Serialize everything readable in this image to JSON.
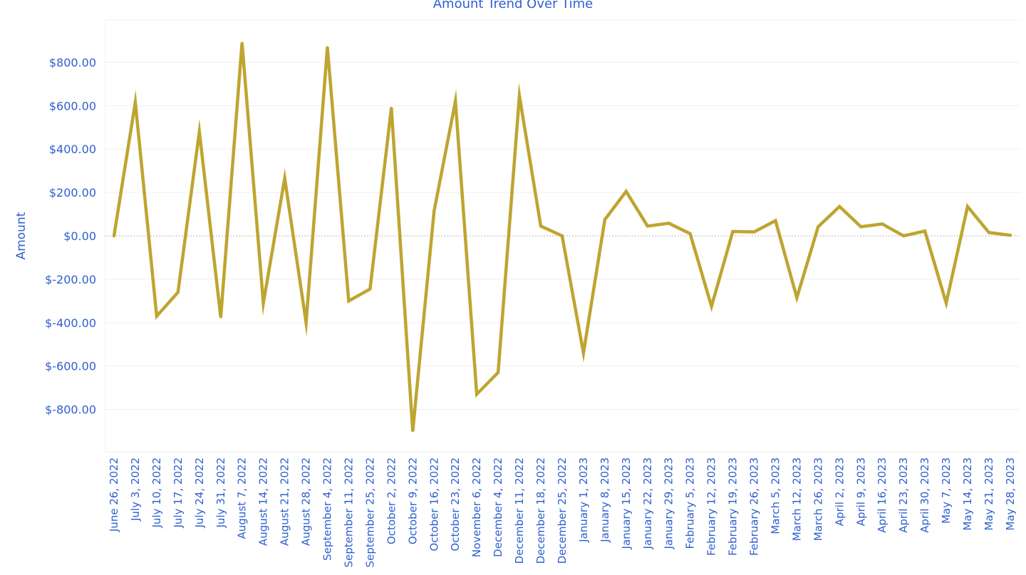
{
  "chart_data": {
    "type": "line",
    "title": "Amount Trend Over Time",
    "ylabel": "Amount",
    "xlabel": "",
    "ylim": [
      -980,
      980
    ],
    "y_ticks": [
      800,
      600,
      400,
      200,
      0,
      -200,
      -400,
      -600,
      -800
    ],
    "y_tick_labels": [
      "$800.00",
      "$600.00",
      "$400.00",
      "$200.00",
      "$0.00",
      "$-200.00",
      "$-400.00",
      "$-600.00",
      "$-800.00"
    ],
    "grid": true,
    "legend": "none",
    "line_color": "#bea531",
    "text_color": "#2f5fd0",
    "categories": [
      "June 26, 2022",
      "July 3, 2022",
      "July 10, 2022",
      "July 17, 2022",
      "July 24, 2022",
      "July 31, 2022",
      "August 7, 2022",
      "August 14, 2022",
      "August 21, 2022",
      "August 28, 2022",
      "September 4, 2022",
      "September 11, 2022",
      "September 25, 2022",
      "October 2, 2022",
      "October 9, 2022",
      "October 16, 2022",
      "October 23, 2022",
      "November 6, 2022",
      "December 4, 2022",
      "December 11, 2022",
      "December 18, 2022",
      "December 25, 2022",
      "January 1, 2023",
      "January 8, 2023",
      "January 15, 2023",
      "January 22, 2023",
      "January 29, 2023",
      "February 5, 2023",
      "February 12, 2023",
      "February 19, 2023",
      "February 26, 2023",
      "March 5, 2023",
      "March 12, 2023",
      "March 26, 2023",
      "April 2, 2023",
      "April 9, 2023",
      "April 16, 2023",
      "April 23, 2023",
      "April 30, 2023",
      "May 7, 2023",
      "May 14, 2023",
      "May 21, 2023",
      "May 28, 2023"
    ],
    "values": [
      0,
      615,
      -370,
      -260,
      480,
      -375,
      890,
      -310,
      265,
      -400,
      870,
      -300,
      -245,
      590,
      -900,
      115,
      620,
      -730,
      -630,
      645,
      45,
      0,
      -540,
      75,
      205,
      45,
      58,
      10,
      -325,
      20,
      18,
      70,
      -285,
      42,
      135,
      42,
      55,
      0,
      22,
      -310,
      135,
      15,
      3
    ]
  }
}
